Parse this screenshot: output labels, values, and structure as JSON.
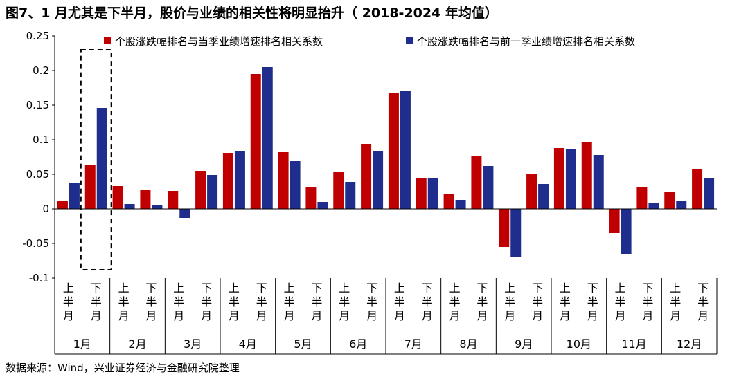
{
  "title": "图7、1 月尤其是下半月，股价与业绩的相关性将明显抬升（ 2018-2024 年均值）",
  "source": "数据来源：Wind，兴业证券经济与金融研究院整理",
  "colors": {
    "series1": "#c00000",
    "series2": "#1f2d8c",
    "axis": "#000000",
    "highlight": "#000000"
  },
  "chart_data": {
    "type": "bar",
    "ylim": [
      -0.1,
      0.25
    ],
    "yticks": [
      -0.1,
      -0.05,
      0,
      0.05,
      0.1,
      0.15,
      0.2,
      0.25
    ],
    "ytick_labels": [
      "-0.1",
      "-0.05",
      "0",
      "0.05",
      "0.1",
      "0.15",
      "0.2",
      "0.25"
    ],
    "categories": [
      "上半月",
      "下半月",
      "上半月",
      "下半月",
      "上半月",
      "下半月",
      "上半月",
      "下半月",
      "上半月",
      "下半月",
      "上半月",
      "下半月",
      "上半月",
      "下半月",
      "上半月",
      "下半月",
      "上半月",
      "下半月",
      "上半月",
      "下半月",
      "上半月",
      "下半月",
      "上半月",
      "下半月"
    ],
    "sub_label_chars": [
      "上半月",
      "下半月"
    ],
    "groups": [
      "1月",
      "2月",
      "3月",
      "4月",
      "5月",
      "6月",
      "7月",
      "8月",
      "9月",
      "10月",
      "11月",
      "12月"
    ],
    "highlight_group": "1月",
    "legend_position": "top",
    "series": [
      {
        "name": "个股涨跌幅排名与当季业绩增速排名相关系数",
        "values": [
          0.011,
          0.064,
          0.033,
          0.027,
          0.026,
          0.055,
          0.081,
          0.195,
          0.082,
          0.032,
          0.054,
          0.094,
          0.167,
          0.045,
          0.022,
          0.076,
          -0.055,
          0.05,
          0.088,
          0.097,
          -0.035,
          0.032,
          0.024,
          0.058
        ]
      },
      {
        "name": "个股涨跌幅排名与前一季业绩增速排名相关系数",
        "values": [
          0.037,
          0.146,
          0.007,
          0.006,
          -0.013,
          0.049,
          0.084,
          0.205,
          0.069,
          0.01,
          0.039,
          0.083,
          0.17,
          0.044,
          0.013,
          0.062,
          -0.069,
          0.036,
          0.086,
          0.078,
          -0.065,
          0.009,
          0.011,
          0.045
        ]
      }
    ]
  }
}
